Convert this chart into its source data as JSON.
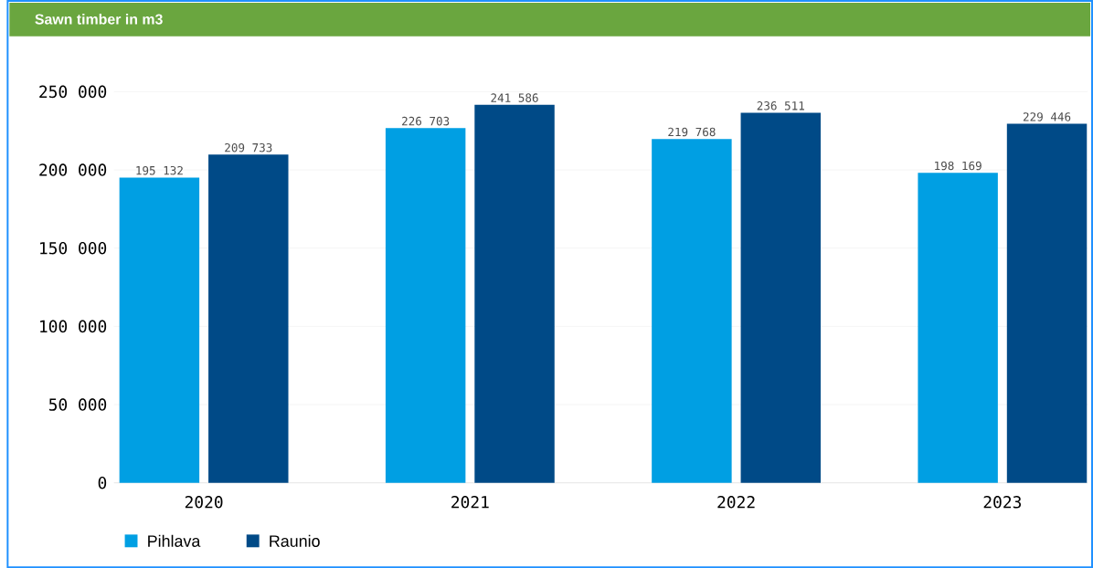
{
  "chart_data": {
    "type": "bar",
    "title": "Sawn timber in m3",
    "categories": [
      "2020",
      "2021",
      "2022",
      "2023"
    ],
    "series": [
      {
        "name": "Pihlava",
        "color": "#009fe3",
        "values": [
          195132,
          226703,
          219768,
          198169
        ],
        "value_labels": [
          "195 132",
          "226 703",
          "219 768",
          "198 169"
        ]
      },
      {
        "name": "Raunio",
        "color": "#004a87",
        "values": [
          209733,
          241586,
          236511,
          229446
        ],
        "value_labels": [
          "209 733",
          "241 586",
          "236 511",
          "229 446"
        ]
      }
    ],
    "ylim": [
      0,
      250000
    ],
    "yticks": [
      0,
      {
        "value": 50000,
        "label": "50 000"
      },
      {
        "value": 100000,
        "label": "100 000"
      },
      {
        "value": 150000,
        "label": "150 000"
      },
      {
        "value": 200000,
        "label": "200 000"
      },
      {
        "value": 250000,
        "label": "250 000"
      }
    ],
    "grid": "y",
    "legend": "bottom"
  }
}
